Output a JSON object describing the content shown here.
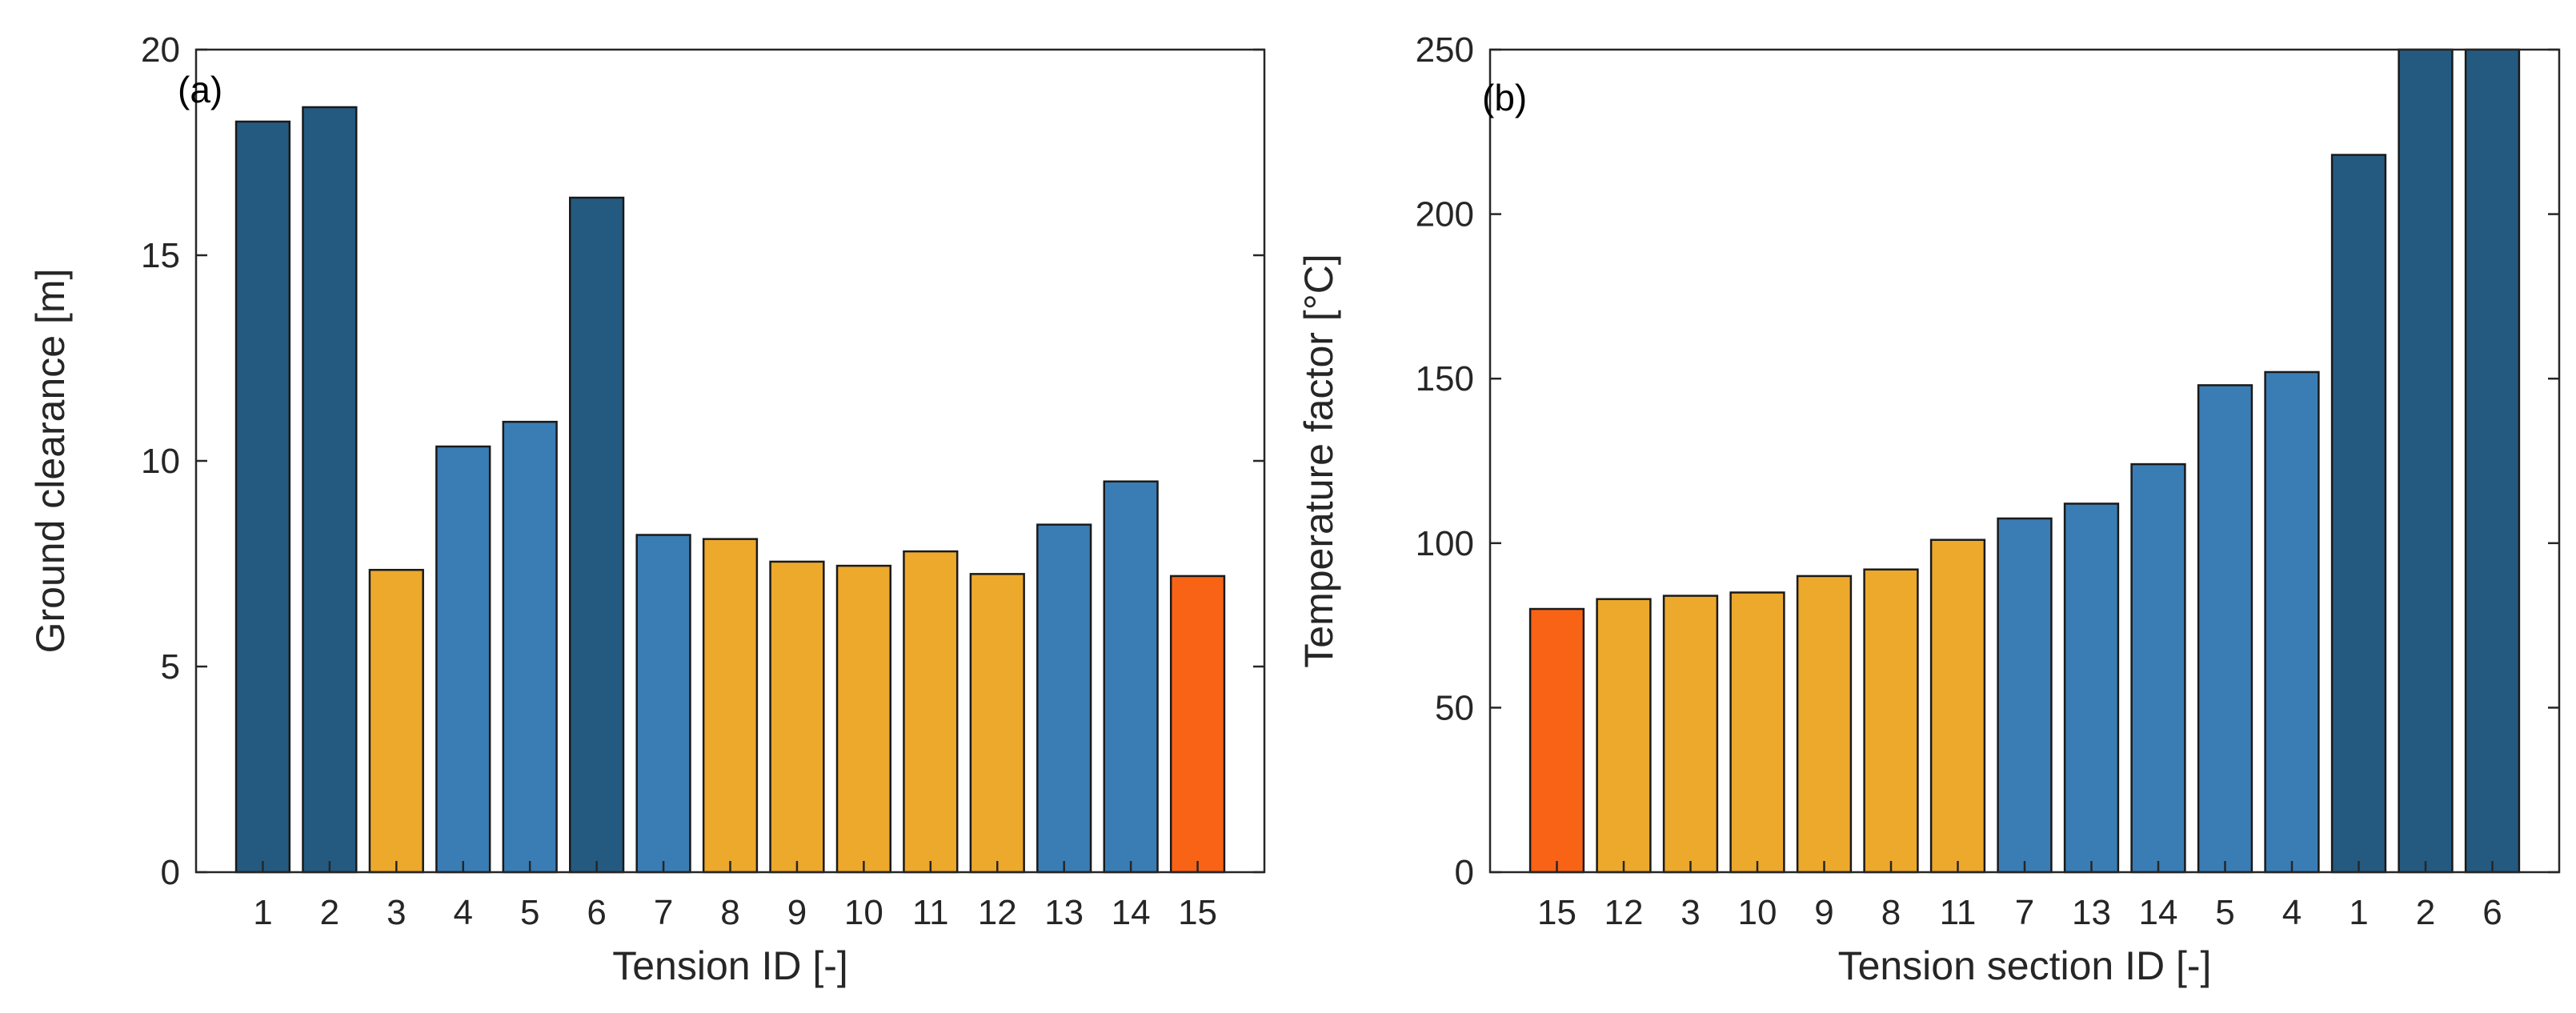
{
  "colors": {
    "dark_blue": "#255a80",
    "mid_blue": "#3a7db5",
    "yellow": "#eda92c",
    "orange": "#f96315",
    "axis": "#262626"
  },
  "chart_data": [
    {
      "type": "bar",
      "panel_label": "(a)",
      "title": "",
      "xlabel": "Tension ID [-]",
      "ylabel": "Ground clearance [m]",
      "ylim": [
        0,
        20
      ],
      "yticks": [
        0,
        5,
        10,
        15,
        20
      ],
      "ytick_labels": [
        "0",
        "5",
        "10",
        "15",
        "20"
      ],
      "grid": false,
      "categories": [
        "1",
        "2",
        "3",
        "4",
        "5",
        "6",
        "7",
        "8",
        "9",
        "10",
        "11",
        "12",
        "13",
        "14",
        "15"
      ],
      "values": [
        18.25,
        18.6,
        7.35,
        10.35,
        10.95,
        16.4,
        8.2,
        8.1,
        7.55,
        7.45,
        7.8,
        7.25,
        8.45,
        9.5,
        7.2
      ],
      "bar_colors": [
        "dark_blue",
        "dark_blue",
        "yellow",
        "mid_blue",
        "mid_blue",
        "dark_blue",
        "mid_blue",
        "yellow",
        "yellow",
        "yellow",
        "yellow",
        "yellow",
        "mid_blue",
        "mid_blue",
        "orange"
      ]
    },
    {
      "type": "bar",
      "panel_label": "(b)",
      "title": "",
      "xlabel": "Tension section ID [-]",
      "ylabel": "Temperature factor [°C]",
      "ylim": [
        0,
        250
      ],
      "yticks": [
        0,
        50,
        100,
        150,
        200,
        250
      ],
      "ytick_labels": [
        "0",
        "50",
        "100",
        "150",
        "200",
        "250"
      ],
      "grid": false,
      "categories": [
        "15",
        "12",
        "3",
        "10",
        "9",
        "8",
        "11",
        "7",
        "13",
        "14",
        "5",
        "4",
        "1",
        "2",
        "6"
      ],
      "values": [
        80,
        83,
        84,
        85,
        90,
        92,
        101,
        107.5,
        112,
        124,
        148,
        152,
        218,
        250,
        250
      ],
      "bar_colors": [
        "orange",
        "yellow",
        "yellow",
        "yellow",
        "yellow",
        "yellow",
        "yellow",
        "mid_blue",
        "mid_blue",
        "mid_blue",
        "mid_blue",
        "mid_blue",
        "dark_blue",
        "dark_blue",
        "dark_blue"
      ]
    }
  ]
}
